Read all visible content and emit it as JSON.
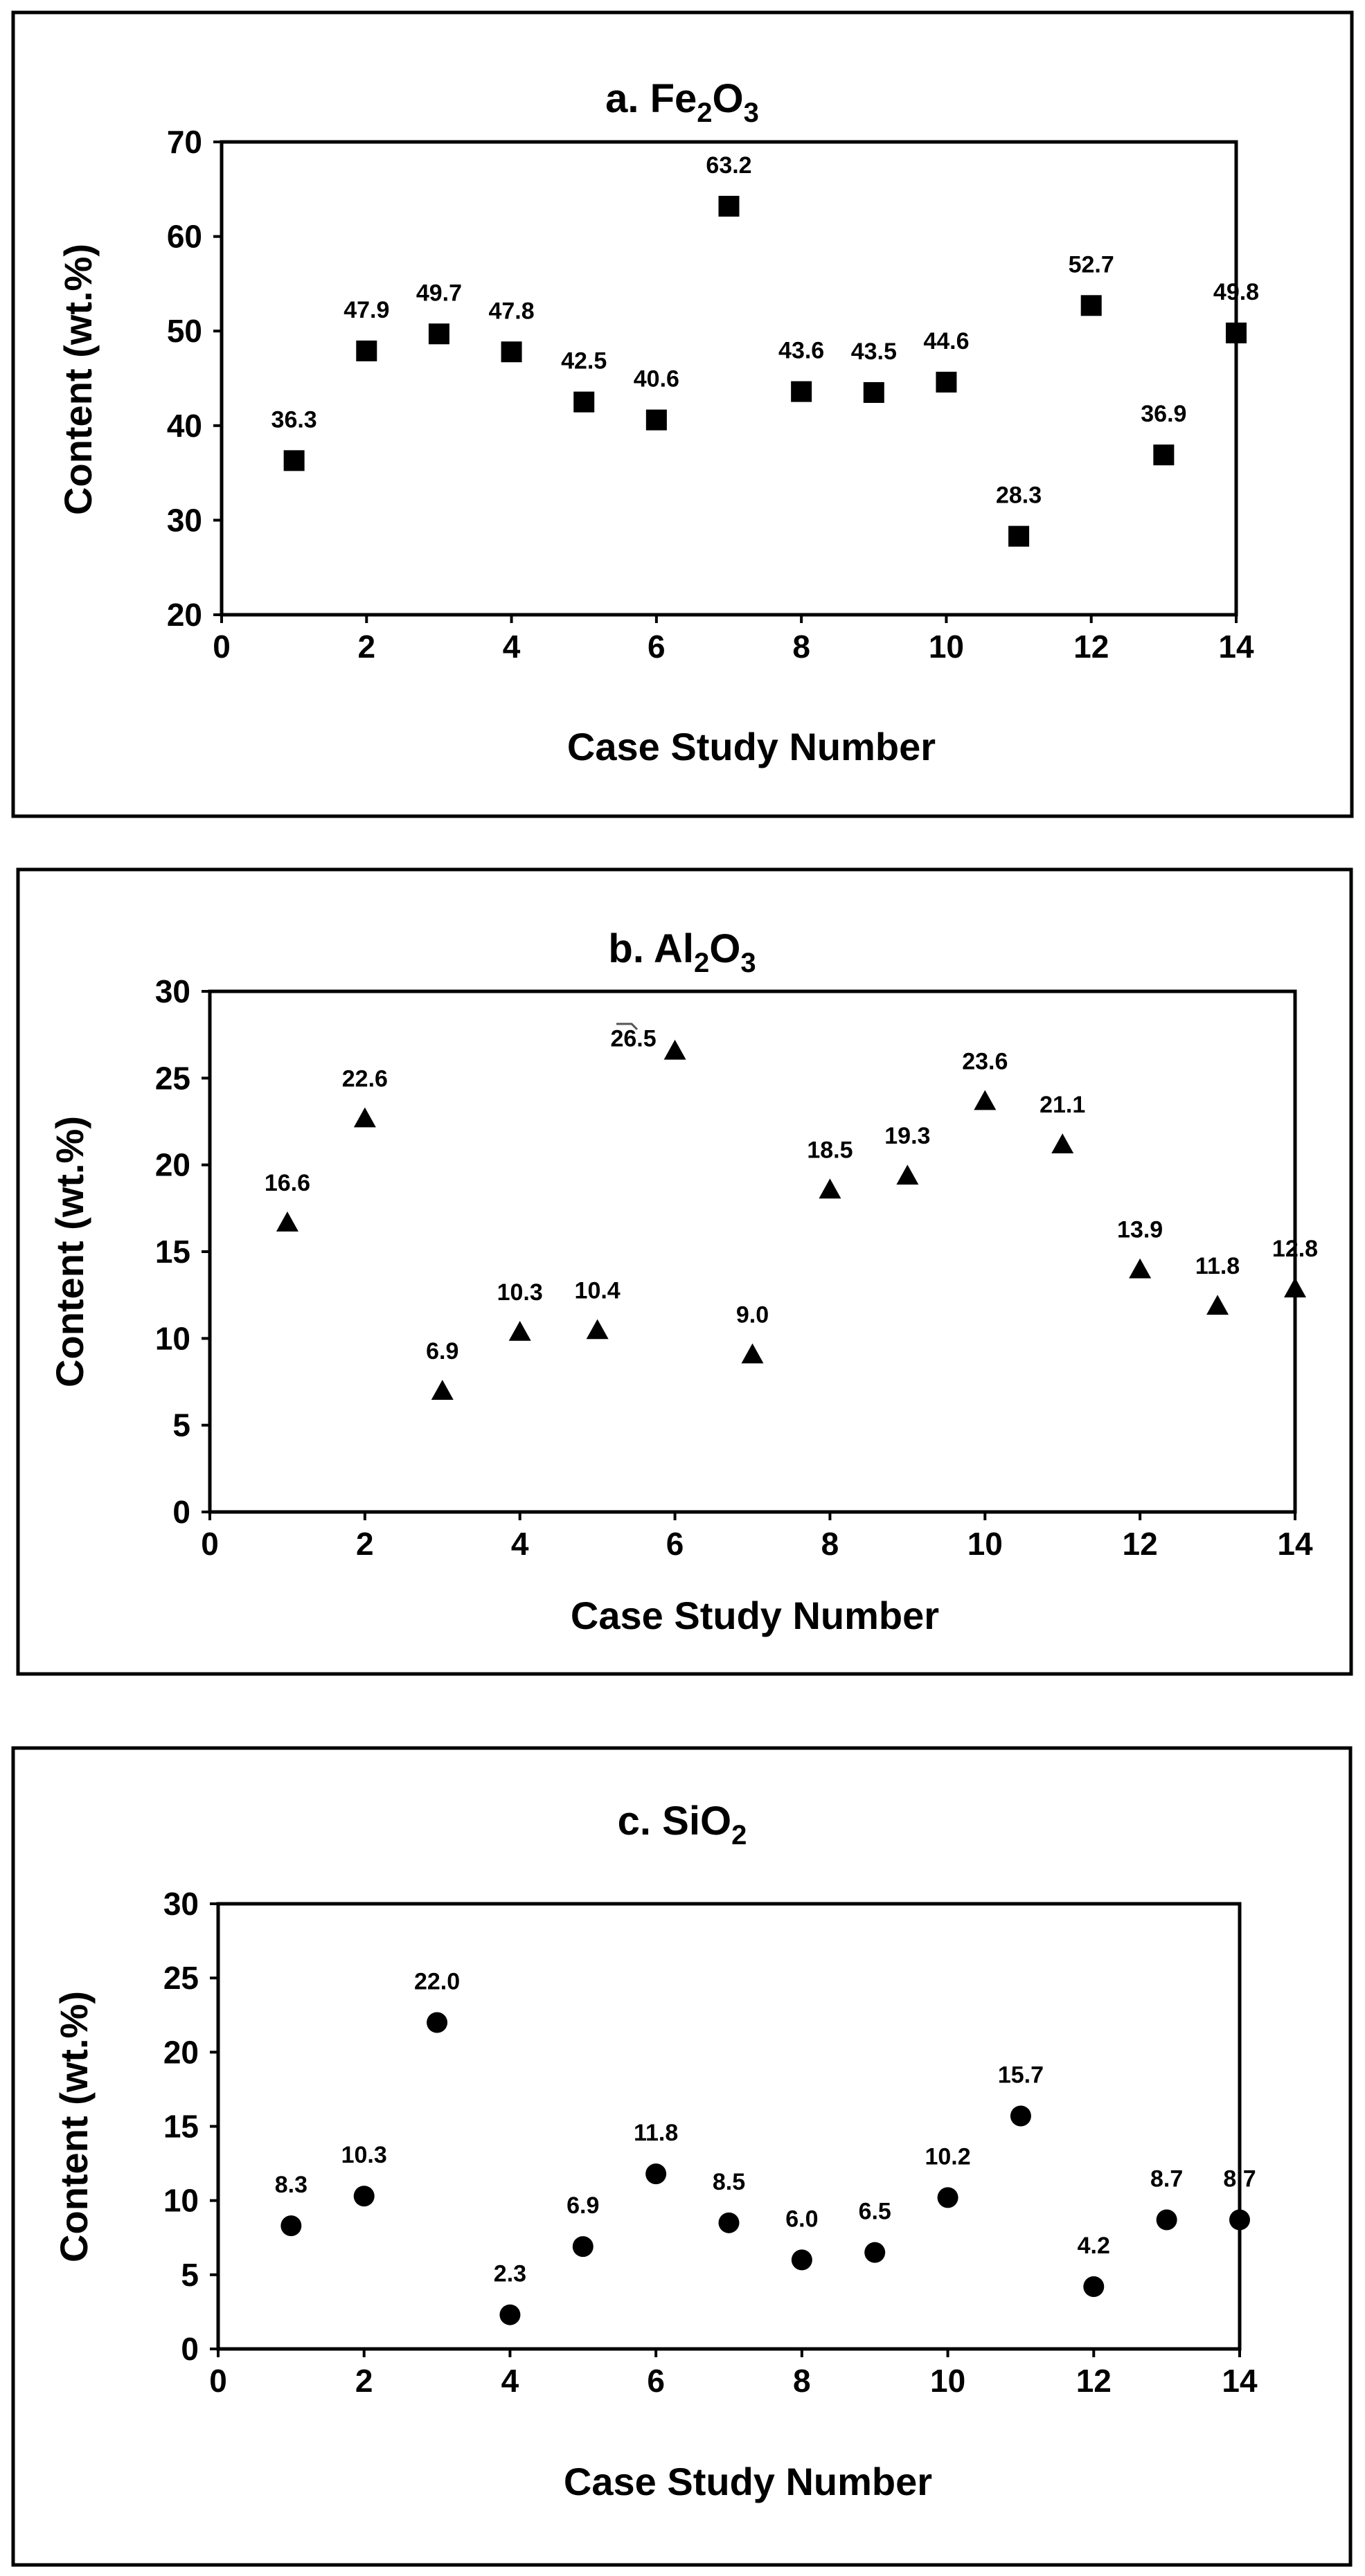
{
  "chart_data": [
    {
      "type": "scatter",
      "title": {
        "prefix": "a.  Fe",
        "sub1": "2",
        "mid": "O",
        "sub2": "3",
        "suffix": ""
      },
      "xlabel": "Case Study Number",
      "ylabel": "Content (wt.%)",
      "xlim": [
        0,
        14
      ],
      "ylim": [
        20,
        70
      ],
      "xticks": [
        0,
        2,
        4,
        6,
        8,
        10,
        12,
        14
      ],
      "yticks": [
        20,
        30,
        40,
        50,
        60,
        70
      ],
      "marker": "square",
      "x": [
        1,
        2,
        3,
        4,
        5,
        6,
        7,
        8,
        9,
        10,
        11,
        12,
        13,
        14
      ],
      "y": [
        36.3,
        47.9,
        49.7,
        47.8,
        42.5,
        40.6,
        63.2,
        43.6,
        43.5,
        44.6,
        28.3,
        52.7,
        36.9,
        49.8
      ],
      "labels": [
        "36.3",
        "47.9",
        "49.7",
        "47.8",
        "42.5",
        "40.6",
        "63.2",
        "43.6",
        "43.5",
        "44.6",
        "28.3",
        "52.7",
        "36.9",
        "49.8"
      ],
      "grid": false
    },
    {
      "type": "scatter",
      "title": {
        "prefix": "b.  Al",
        "sub1": "2",
        "mid": "O",
        "sub2": "3",
        "suffix": ""
      },
      "xlabel": "Case Study Number",
      "ylabel": "Content (wt.%)",
      "xlim": [
        0,
        14
      ],
      "ylim": [
        0,
        30
      ],
      "xticks": [
        0,
        2,
        4,
        6,
        8,
        10,
        12,
        14
      ],
      "yticks": [
        0,
        5,
        10,
        15,
        20,
        25,
        30
      ],
      "marker": "triangle",
      "x": [
        1,
        2,
        3,
        4,
        5,
        6,
        7,
        8,
        9,
        10,
        11,
        12,
        13,
        14
      ],
      "y": [
        16.6,
        22.6,
        6.9,
        10.3,
        10.4,
        26.5,
        9.0,
        18.5,
        19.3,
        23.6,
        21.1,
        13.9,
        11.8,
        12.8
      ],
      "labels": [
        "16.6",
        "22.6",
        "6.9",
        "10.3",
        "10.4",
        "26.5",
        "9.0",
        "18.5",
        "19.3",
        "23.6",
        "21.1",
        "13.9",
        "11.8",
        "12.8"
      ],
      "grid": false
    },
    {
      "type": "scatter",
      "title": {
        "prefix": "c.  SiO",
        "sub1": "2",
        "mid": "",
        "sub2": "",
        "suffix": ""
      },
      "xlabel": "Case Study Number",
      "ylabel": "Content (wt.%)",
      "xlim": [
        0,
        14
      ],
      "ylim": [
        0,
        30
      ],
      "xticks": [
        0,
        2,
        4,
        6,
        8,
        10,
        12,
        14
      ],
      "yticks": [
        0,
        5,
        10,
        15,
        20,
        25,
        30
      ],
      "marker": "circle",
      "x": [
        1,
        2,
        3,
        4,
        5,
        6,
        7,
        8,
        9,
        10,
        11,
        12,
        13,
        14
      ],
      "y": [
        8.3,
        10.3,
        22.0,
        2.3,
        6.9,
        11.8,
        8.5,
        6.0,
        6.5,
        10.2,
        15.7,
        4.2,
        8.7,
        8.7
      ],
      "labels": [
        "8.3",
        "10.3",
        "22.0",
        "2.3",
        "6.9",
        "11.8",
        "8.5",
        "6.0",
        "6.5",
        "10.2",
        "15.7",
        "4.2",
        "8.7",
        "8.7"
      ],
      "grid": false
    }
  ]
}
